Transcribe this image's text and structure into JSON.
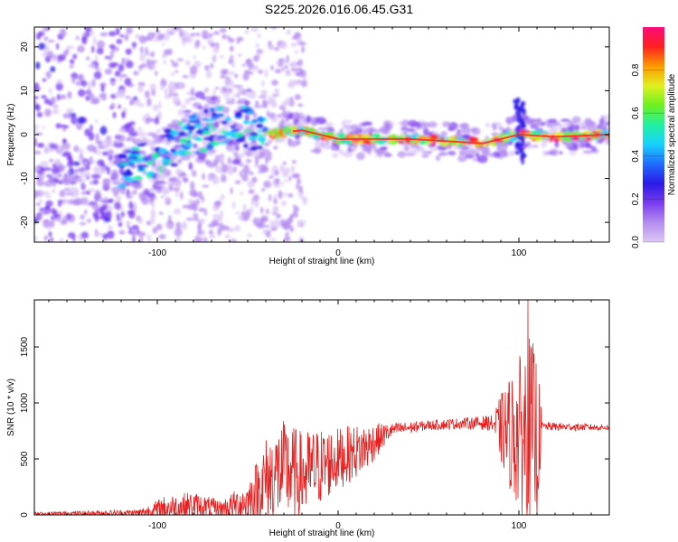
{
  "title": "S225.2026.016.06.45.G31",
  "colors": {
    "snr_line": "#e82020",
    "colormap": [
      "#ffffff",
      "#dcc8f5",
      "#b48cf0",
      "#7a3cf0",
      "#2a1ae6",
      "#1f6cff",
      "#18d2ff",
      "#22f0a0",
      "#6ef020",
      "#e0f020",
      "#ff9a00",
      "#ff2020",
      "#ff0a7a"
    ]
  },
  "chart_data": [
    {
      "type": "heatmap",
      "xlabel": "Height of straight line (km)",
      "ylabel": "Frequency (Hz)",
      "xlim": [
        -168,
        150
      ],
      "ylim": [
        -24.5,
        24.5
      ],
      "xticks": [
        -100,
        0,
        100
      ],
      "yticks": [
        -20,
        -10,
        0,
        10,
        20
      ],
      "colorbar": {
        "label": "Normalized spectral amplitude",
        "range": [
          0,
          1
        ],
        "ticks": [
          "0.0",
          "0.2",
          "0.4",
          "0.6",
          "0.8"
        ]
      },
      "ridge": [
        {
          "x": -168,
          "y": -10
        },
        {
          "x": -140,
          "y": -12
        },
        {
          "x": -120,
          "y": -8
        },
        {
          "x": -100,
          "y": -5
        },
        {
          "x": -80,
          "y": 0
        },
        {
          "x": -60,
          "y": 3
        },
        {
          "x": -40,
          "y": 0
        },
        {
          "x": -20,
          "y": 1
        },
        {
          "x": 0,
          "y": -1
        },
        {
          "x": 40,
          "y": -1
        },
        {
          "x": 80,
          "y": -2
        },
        {
          "x": 100,
          "y": 0
        },
        {
          "x": 120,
          "y": -0.5
        },
        {
          "x": 150,
          "y": 0
        }
      ]
    },
    {
      "type": "line",
      "xlabel": "Height of straight line (km)",
      "ylabel": "SNR (10 * v/v)",
      "xlim": [
        -168,
        150
      ],
      "ylim": [
        0,
        1920
      ],
      "xticks": [
        -100,
        0,
        100
      ],
      "yticks": [
        0,
        500,
        1000,
        1500
      ],
      "envelope": [
        {
          "x": -168,
          "base": 10,
          "amp": 15
        },
        {
          "x": -110,
          "base": 20,
          "amp": 30
        },
        {
          "x": -95,
          "base": 60,
          "amp": 120
        },
        {
          "x": -80,
          "base": 80,
          "amp": 130
        },
        {
          "x": -65,
          "base": 50,
          "amp": 80
        },
        {
          "x": -50,
          "base": 120,
          "amp": 180
        },
        {
          "x": -40,
          "base": 300,
          "amp": 400
        },
        {
          "x": -30,
          "base": 400,
          "amp": 450
        },
        {
          "x": -20,
          "base": 350,
          "amp": 400
        },
        {
          "x": -10,
          "base": 430,
          "amp": 350
        },
        {
          "x": 0,
          "base": 500,
          "amp": 280
        },
        {
          "x": 15,
          "base": 600,
          "amp": 220
        },
        {
          "x": 30,
          "base": 760,
          "amp": 60
        },
        {
          "x": 50,
          "base": 800,
          "amp": 45
        },
        {
          "x": 70,
          "base": 820,
          "amp": 50
        },
        {
          "x": 85,
          "base": 820,
          "amp": 70
        },
        {
          "x": 92,
          "base": 750,
          "amp": 400
        },
        {
          "x": 100,
          "base": 700,
          "amp": 700
        },
        {
          "x": 105,
          "base": 750,
          "amp": 900
        },
        {
          "x": 110,
          "base": 650,
          "amp": 800
        },
        {
          "x": 113,
          "base": 790,
          "amp": 40
        },
        {
          "x": 150,
          "base": 780,
          "amp": 25
        }
      ],
      "peak": {
        "x": 105,
        "y": 1920
      }
    }
  ]
}
